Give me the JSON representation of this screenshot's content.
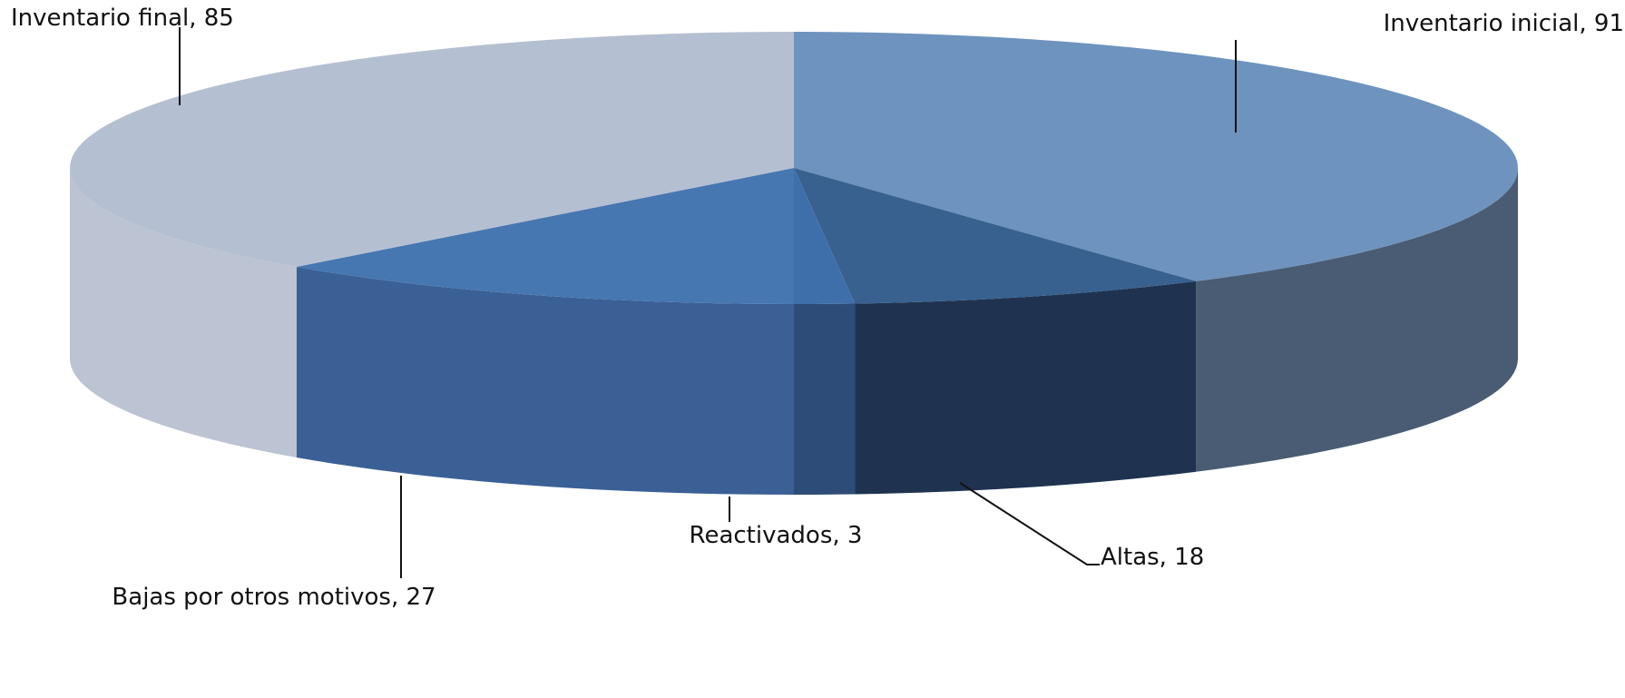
{
  "chart_data": {
    "type": "pie",
    "style": "3d",
    "title": "",
    "slices": [
      {
        "label": "Inventario inicial",
        "value": 91,
        "display": "Inventario inicial, 91",
        "color_top": "#6E93BE",
        "color_side": "#4A5C73"
      },
      {
        "label": "Altas",
        "value": 18,
        "display": "Altas, 18",
        "color_top": "#38618F",
        "color_side": "#1F3350"
      },
      {
        "label": "Reactivados",
        "value": 3,
        "display": "Reactivados, 3",
        "color_top": "#3F6FAA",
        "color_side": "#2E4C78"
      },
      {
        "label": "Bajas por otros motivos",
        "value": 27,
        "display": "Bajas por otros motivos, 27",
        "color_top": "#4677B1",
        "color_side": "#3A6096"
      },
      {
        "label": "Inventario final",
        "value": 85,
        "display": "Inventario final, 85",
        "color_top": "#B5BFD2",
        "color_side": "#BCC4D3"
      }
    ]
  }
}
